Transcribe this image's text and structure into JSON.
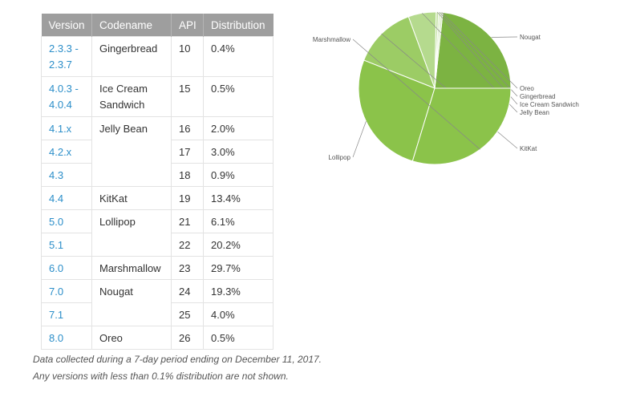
{
  "table": {
    "headers": [
      "Version",
      "Codename",
      "API",
      "Distribution"
    ],
    "rows": [
      {
        "version": "2.3.3 -\n2.3.7",
        "codename": "Gingerbread",
        "api": "10",
        "distribution": "0.4%",
        "tall": true
      },
      {
        "version": "4.0.3 -\n4.0.4",
        "codename": "Ice Cream\nSandwich",
        "api": "15",
        "distribution": "0.5%",
        "tall": true
      },
      {
        "version": "4.1.x",
        "codename": "Jelly Bean",
        "api": "16",
        "distribution": "2.0%",
        "span": 3
      },
      {
        "version": "4.2.x",
        "api": "17",
        "distribution": "3.0%"
      },
      {
        "version": "4.3",
        "api": "18",
        "distribution": "0.9%"
      },
      {
        "version": "4.4",
        "codename": "KitKat",
        "api": "19",
        "distribution": "13.4%"
      },
      {
        "version": "5.0",
        "codename": "Lollipop",
        "api": "21",
        "distribution": "6.1%",
        "span": 2
      },
      {
        "version": "5.1",
        "api": "22",
        "distribution": "20.2%"
      },
      {
        "version": "6.0",
        "codename": "Marshmallow",
        "api": "23",
        "distribution": "29.7%"
      },
      {
        "version": "7.0",
        "codename": "Nougat",
        "api": "24",
        "distribution": "19.3%",
        "span": 2
      },
      {
        "version": "7.1",
        "api": "25",
        "distribution": "4.0%"
      },
      {
        "version": "8.0",
        "codename": "Oreo",
        "api": "26",
        "distribution": "0.5%"
      }
    ]
  },
  "footnotes": {
    "line1": "Data collected during a 7-day period ending on December 11, 2017.",
    "line2": "Any versions with less than 0.1% distribution are not shown."
  },
  "colors": {
    "header_bg": "#9e9e9e",
    "version_link": "#2b8ec9",
    "slice_fills": [
      "#7cb342",
      "#d8ebc2",
      "#cfe6b5",
      "#c2dfa1",
      "#b5da8e",
      "#9ccc65",
      "#8bc34a"
    ]
  },
  "chart_data": {
    "type": "pie",
    "start": "3 o'clock, counterclockwise",
    "labels": [
      "Nougat",
      "Oreo",
      "Gingerbread",
      "Ice Cream Sandwich",
      "Jelly Bean",
      "KitKat",
      "Lollipop",
      "Marshmallow"
    ],
    "values": [
      23.3,
      0.5,
      0.4,
      0.5,
      5.9,
      13.4,
      26.3,
      29.7
    ]
  }
}
